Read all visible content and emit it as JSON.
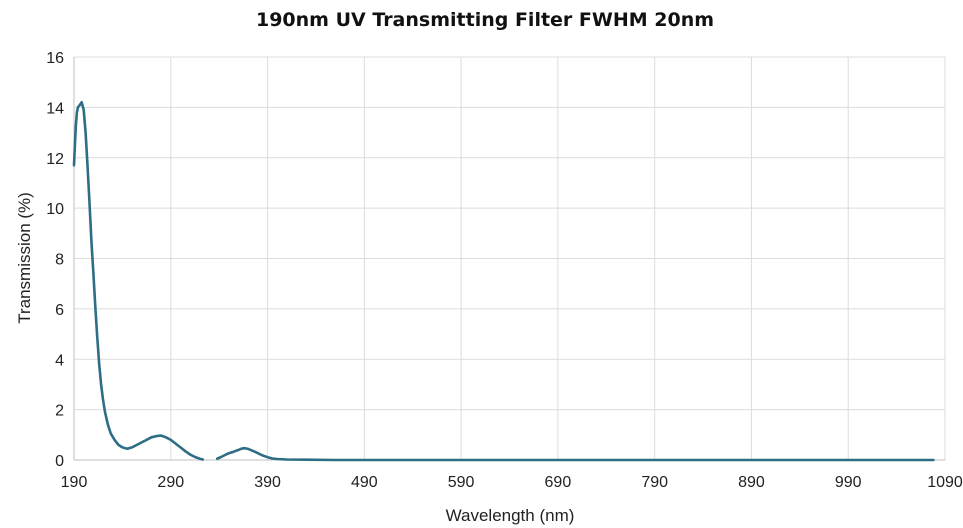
{
  "chart_data": {
    "type": "line",
    "title": "190nm UV Transmitting Filter FWHM 20nm",
    "xlabel": "Wavelength (nm)",
    "ylabel": "Transmission (%)",
    "xlim": [
      190,
      1090
    ],
    "ylim": [
      0,
      16
    ],
    "xticks": [
      190,
      290,
      390,
      490,
      590,
      690,
      790,
      890,
      990,
      1090
    ],
    "yticks": [
      0,
      2,
      4,
      6,
      8,
      10,
      12,
      14,
      16
    ],
    "grid": true,
    "legend": "none",
    "series_color": "#2e6d86",
    "series": [
      {
        "segments": [
          [
            [
              190,
              11.7
            ],
            [
              191,
              12.6
            ],
            [
              192,
              13.3
            ],
            [
              193,
              13.8
            ],
            [
              194,
              14.0
            ],
            [
              196,
              14.1
            ],
            [
              198,
              14.2
            ],
            [
              200,
              13.9
            ],
            [
              202,
              13.0
            ],
            [
              204,
              11.7
            ],
            [
              206,
              10.2
            ],
            [
              208,
              8.7
            ],
            [
              210,
              7.4
            ],
            [
              212,
              6.1
            ],
            [
              214,
              4.9
            ],
            [
              216,
              3.8
            ],
            [
              218,
              3.0
            ],
            [
              220,
              2.4
            ],
            [
              222,
              1.9
            ],
            [
              225,
              1.4
            ],
            [
              228,
              1.05
            ],
            [
              232,
              0.8
            ],
            [
              236,
              0.6
            ],
            [
              240,
              0.5
            ],
            [
              245,
              0.45
            ],
            [
              250,
              0.5
            ],
            [
              255,
              0.6
            ],
            [
              260,
              0.7
            ],
            [
              265,
              0.8
            ],
            [
              270,
              0.9
            ],
            [
              275,
              0.95
            ],
            [
              280,
              0.97
            ],
            [
              285,
              0.9
            ],
            [
              290,
              0.8
            ],
            [
              295,
              0.65
            ],
            [
              300,
              0.5
            ],
            [
              305,
              0.35
            ],
            [
              310,
              0.22
            ],
            [
              315,
              0.12
            ],
            [
              320,
              0.05
            ],
            [
              323,
              0.02
            ]
          ],
          [
            [
              338,
              0.05
            ],
            [
              342,
              0.12
            ],
            [
              346,
              0.2
            ],
            [
              350,
              0.27
            ],
            [
              355,
              0.33
            ],
            [
              360,
              0.4
            ],
            [
              363,
              0.45
            ],
            [
              366,
              0.47
            ],
            [
              370,
              0.44
            ],
            [
              375,
              0.36
            ],
            [
              380,
              0.27
            ],
            [
              385,
              0.18
            ],
            [
              390,
              0.11
            ],
            [
              395,
              0.06
            ],
            [
              400,
              0.04
            ],
            [
              410,
              0.02
            ],
            [
              430,
              0.01
            ],
            [
              460,
              0.0
            ],
            [
              500,
              0.0
            ],
            [
              600,
              0.0
            ],
            [
              700,
              0.0
            ],
            [
              800,
              0.0
            ],
            [
              900,
              0.0
            ],
            [
              1000,
              0.0
            ],
            [
              1078,
              0.0
            ]
          ]
        ]
      }
    ]
  }
}
